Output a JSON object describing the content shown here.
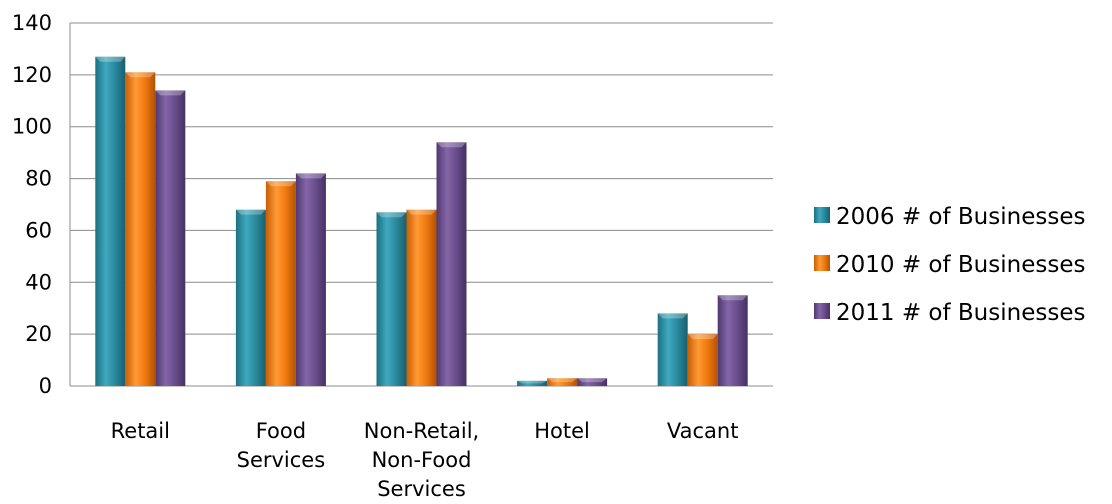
{
  "chart_data": {
    "type": "bar",
    "categories": [
      [
        "Retail"
      ],
      [
        "Food",
        "Services"
      ],
      [
        "Non-Retail,",
        "Non-Food",
        "Services"
      ],
      [
        "Hotel"
      ],
      [
        "Vacant"
      ]
    ],
    "series": [
      {
        "name": "2006 # of Businesses",
        "color": "#2a8a9e",
        "values": [
          127,
          68,
          67,
          2,
          28
        ]
      },
      {
        "name": "2010 # of Businesses",
        "color": "#f07a10",
        "values": [
          121,
          79,
          68,
          3,
          20
        ]
      },
      {
        "name": "2011 # of Businesses",
        "color": "#6a4d8c",
        "values": [
          114,
          82,
          94,
          3,
          35
        ]
      }
    ],
    "ylim": [
      0,
      140
    ],
    "yticks": [
      "0",
      "20",
      "40",
      "60",
      "80",
      "100",
      "120",
      "140"
    ],
    "grid": true,
    "legend_position": "right"
  }
}
